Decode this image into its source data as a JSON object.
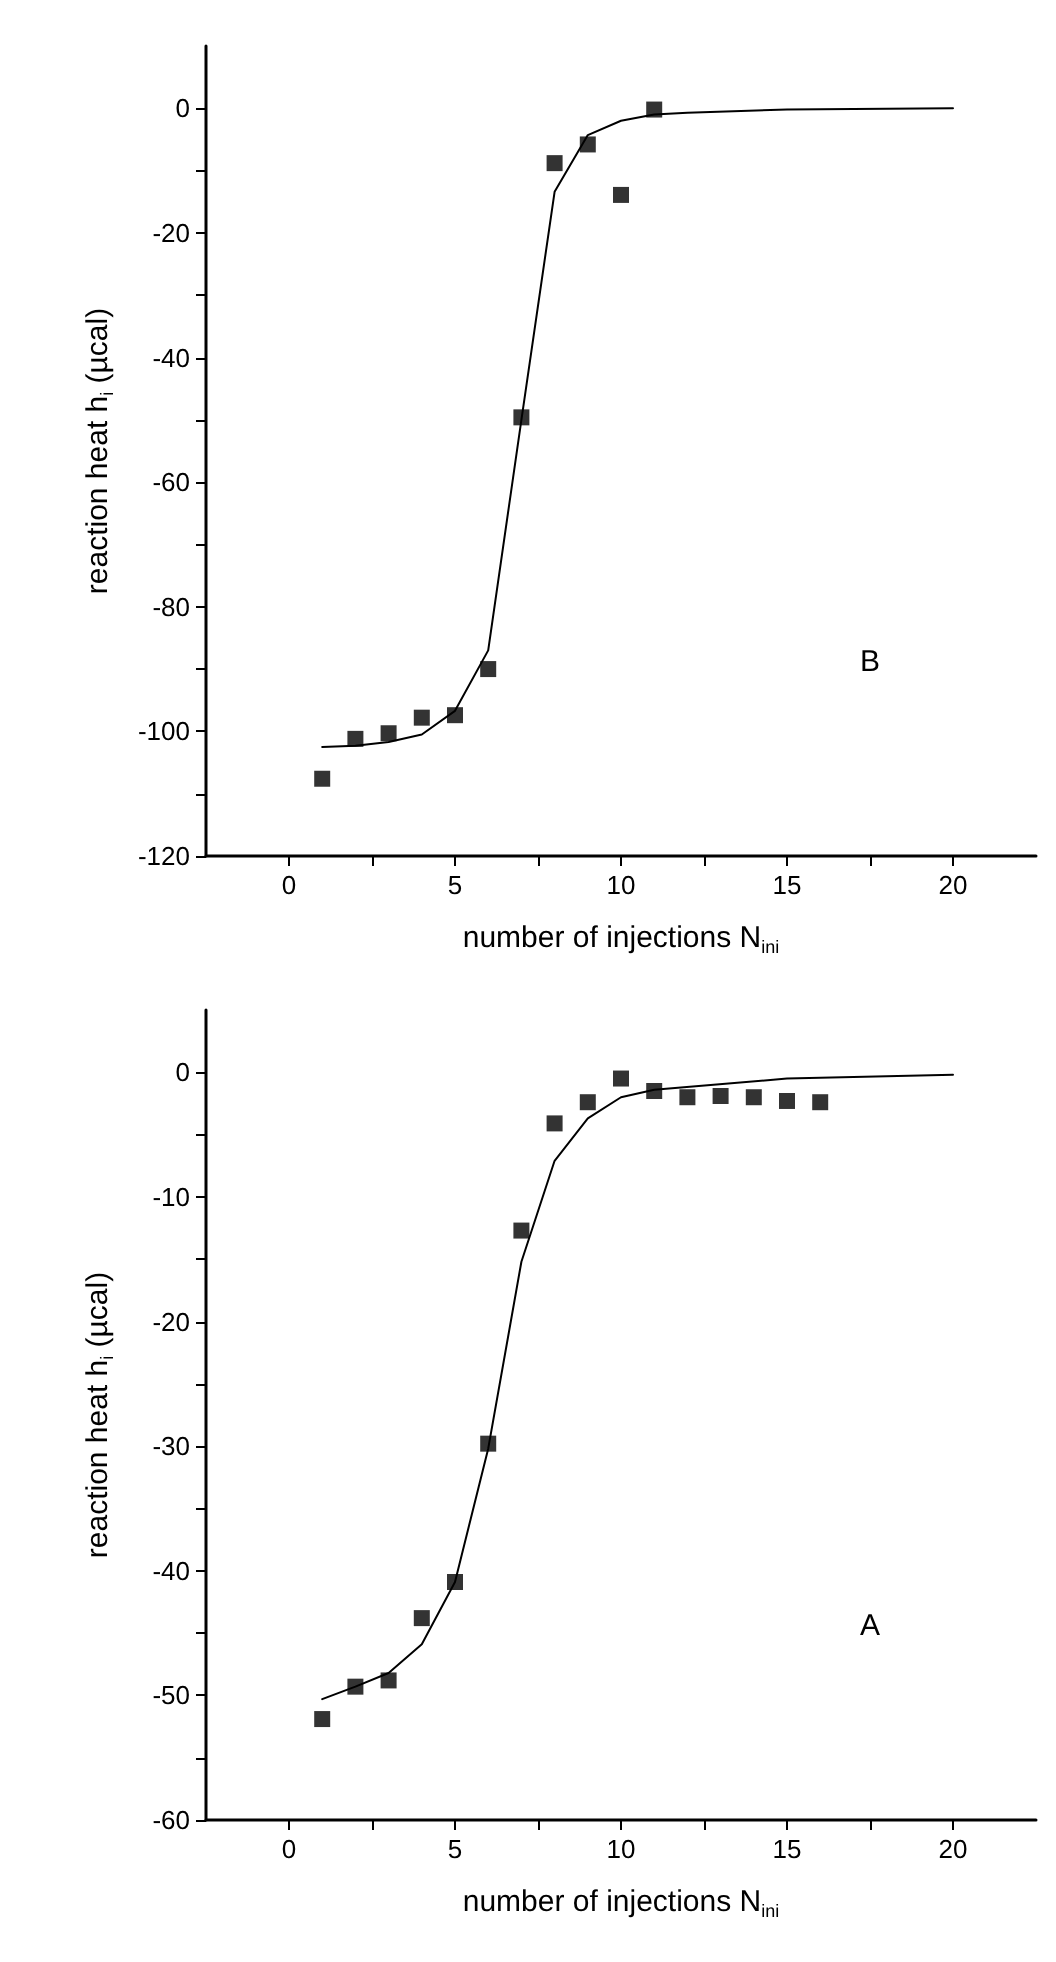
{
  "chart_data": [
    {
      "type": "scatter",
      "xlabel": "number of injections N$_{ini}$",
      "ylabel": "reaction heat h$_{i}$ (µcal)",
      "xlim": [
        -2.5,
        22.5
      ],
      "ylim": [
        -120,
        10
      ],
      "xticks": [
        0,
        {
          "value": 2.5,
          "label": null
        },
        5,
        {
          "value": 7.5,
          "label": null
        },
        10,
        {
          "value": 12.5,
          "label": null
        },
        15,
        {
          "value": 17.5,
          "label": null
        },
        20
      ],
      "yticks": [
        -120,
        {
          "value": -110,
          "label": null
        },
        -100,
        {
          "value": -90,
          "label": null
        },
        -80,
        {
          "value": -70,
          "label": null
        },
        -60,
        {
          "value": -50,
          "label": null
        },
        -40,
        {
          "value": -30,
          "label": null
        },
        -20,
        {
          "value": -10,
          "label": null
        },
        0
      ],
      "annotations": [
        "B"
      ],
      "series": [
        {
          "color": "#000000",
          "marker": "square",
          "x": [
            1,
            2,
            3,
            4,
            5,
            6,
            7,
            8,
            9,
            10,
            11
          ],
          "values": [
            -107.6,
            -101.2,
            -100.3,
            -97.8,
            -97.4,
            -90,
            -49.6,
            -8.8,
            -5.8,
            -13.9,
            -0.2
          ]
        },
        {
          "type": "line",
          "color": "#000000",
          "marker": "none",
          "line_style": "solid",
          "x": [
            1,
            2,
            3,
            4,
            5,
            6,
            7,
            8,
            9,
            10,
            11,
            12,
            15,
            20
          ],
          "values": [
            -102.5,
            -102.3,
            -101.7,
            -100.5,
            -96.7,
            -87,
            -50,
            -13.4,
            -4.3,
            -2,
            -1,
            -0.7,
            -0.2,
            0
          ]
        }
      ]
    },
    {
      "type": "scatter",
      "xlabel": "number of injections N$_{ini}$",
      "ylabel": "reaction heat h$_{i}$ (µcal)",
      "xlim": [
        -2.5,
        22.5
      ],
      "ylim": [
        -60,
        5
      ],
      "xticks": [
        0,
        {
          "value": 2.5,
          "label": null
        },
        5,
        {
          "value": 7.5,
          "label": null
        },
        10,
        {
          "value": 12.5,
          "label": null
        },
        15,
        {
          "value": 17.5,
          "label": null
        },
        20
      ],
      "yticks": [
        -60,
        {
          "value": -55,
          "label": null
        },
        -50,
        {
          "value": -45,
          "label": null
        },
        -40,
        {
          "value": -35,
          "label": null
        },
        -30,
        {
          "value": -25,
          "label": null
        },
        -20,
        {
          "value": -15,
          "label": null
        },
        -10,
        {
          "value": -5,
          "label": null
        },
        0
      ],
      "annotations": [
        "A"
      ],
      "series": [
        {
          "color": "#000000",
          "marker": "square",
          "x": [
            1,
            2,
            3,
            4,
            5,
            6,
            7,
            8,
            9,
            10,
            11,
            12,
            13,
            14,
            15,
            16
          ],
          "values": [
            -51.9,
            -49.3,
            -48.8,
            -43.8,
            -40.9,
            -29.8,
            -12.7,
            -4.1,
            -2.4,
            -0.5,
            -1.5,
            -2,
            -1.9,
            -2,
            -2.3,
            -2.4
          ]
        },
        {
          "type": "line",
          "color": "#000000",
          "marker": "none",
          "line_style": "solid",
          "x": [
            1,
            2,
            3,
            4,
            5,
            6,
            7,
            8,
            9,
            10,
            11,
            15,
            20
          ],
          "values": [
            -50.3,
            -49.3,
            -48.2,
            -45.9,
            -40.9,
            -30.2,
            -15.2,
            -7.1,
            -3.7,
            -2,
            -1.4,
            -0.5,
            -0.2
          ]
        }
      ]
    }
  ]
}
